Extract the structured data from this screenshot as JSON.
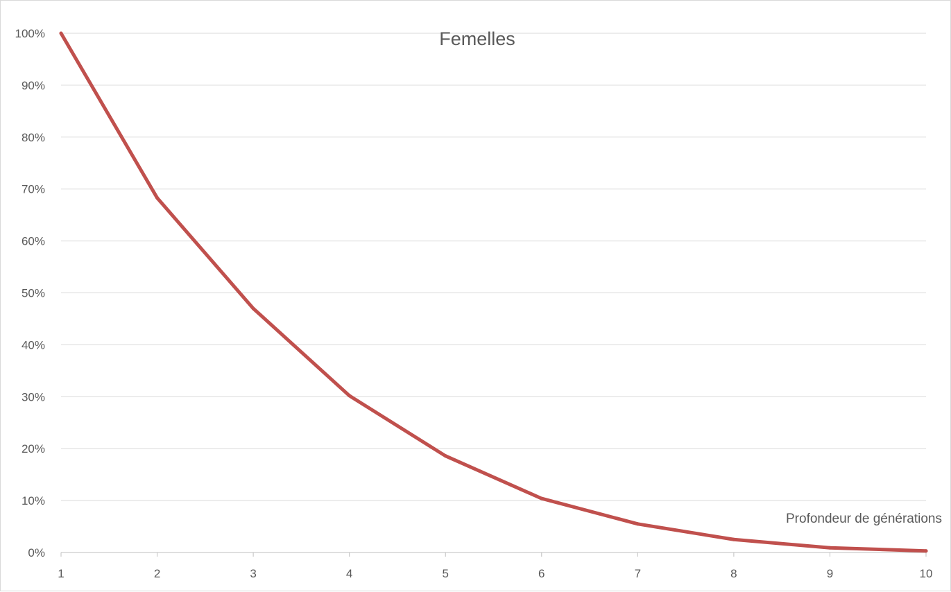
{
  "chart_data": {
    "type": "line",
    "title": "Femelles",
    "xlabel": "Profondeur de générations",
    "ylabel": "",
    "x": [
      1,
      2,
      3,
      4,
      5,
      6,
      7,
      8,
      9,
      10
    ],
    "series": [
      {
        "values": [
          1.0,
          0.683,
          0.47,
          0.302,
          0.186,
          0.104,
          0.055,
          0.025,
          0.009,
          0.003
        ],
        "color": "#c0504d"
      }
    ],
    "ylim": [
      0,
      1
    ],
    "yticks": [
      "0%",
      "10%",
      "20%",
      "30%",
      "40%",
      "50%",
      "60%",
      "70%",
      "80%",
      "90%",
      "100%"
    ],
    "xticks": [
      "1",
      "2",
      "3",
      "4",
      "5",
      "6",
      "7",
      "8",
      "9",
      "10"
    ],
    "grid": true,
    "legend": "none",
    "gridline_color": "#d9d9d9",
    "axis_color": "#bfbfbf",
    "text_color": "#595959"
  }
}
